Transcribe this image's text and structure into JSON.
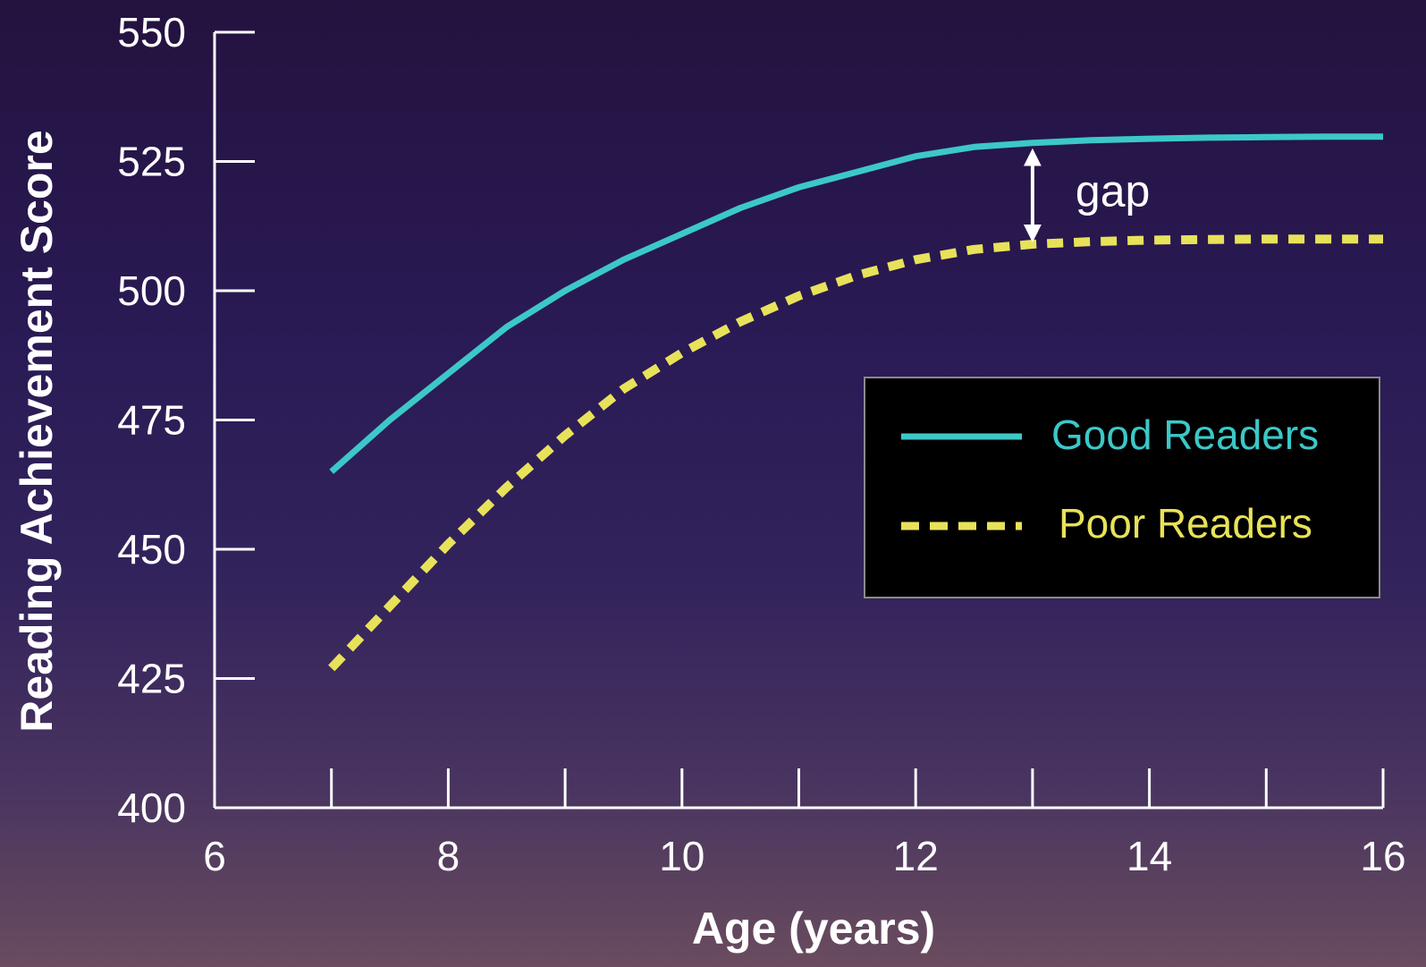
{
  "chart_data": {
    "type": "line",
    "title": "",
    "xlabel": "Age (years)",
    "ylabel": "Reading Achievement Score",
    "xlim": [
      6,
      16
    ],
    "ylim": [
      400,
      550
    ],
    "x_ticks": [
      6,
      8,
      10,
      12,
      14,
      16
    ],
    "y_ticks": [
      400,
      425,
      450,
      475,
      500,
      525,
      550
    ],
    "x_minor_ticks": [
      7,
      8,
      9,
      10,
      11,
      12,
      13,
      14,
      15,
      16
    ],
    "grid": false,
    "legend_position": "center-right",
    "series": [
      {
        "name": "Good Readers",
        "color": "#3cc8c8",
        "style": "solid",
        "x": [
          7,
          7.5,
          8,
          8.5,
          9,
          9.5,
          10,
          10.5,
          11,
          11.5,
          12,
          12.5,
          13,
          13.5,
          14,
          14.5,
          15,
          15.5,
          16
        ],
        "y": [
          465,
          475,
          484,
          493,
          500,
          506,
          511,
          516,
          520,
          523,
          526,
          527.8,
          528.6,
          529.1,
          529.4,
          529.6,
          529.7,
          529.8,
          529.8
        ]
      },
      {
        "name": "Poor Readers",
        "color": "#e8e25a",
        "style": "dashed",
        "x": [
          7,
          7.5,
          8,
          8.5,
          9,
          9.5,
          10,
          10.5,
          11,
          11.5,
          12,
          12.5,
          13,
          13.5,
          14,
          14.5,
          15,
          15.5,
          16
        ],
        "y": [
          427,
          439,
          451,
          462,
          472,
          481,
          488,
          494,
          499,
          503,
          506,
          508,
          509,
          509.5,
          509.8,
          509.9,
          510,
          510,
          510
        ]
      }
    ],
    "annotations": [
      {
        "text": "gap",
        "x": 13,
        "y_from": 509,
        "y_to": 528.6
      }
    ]
  }
}
